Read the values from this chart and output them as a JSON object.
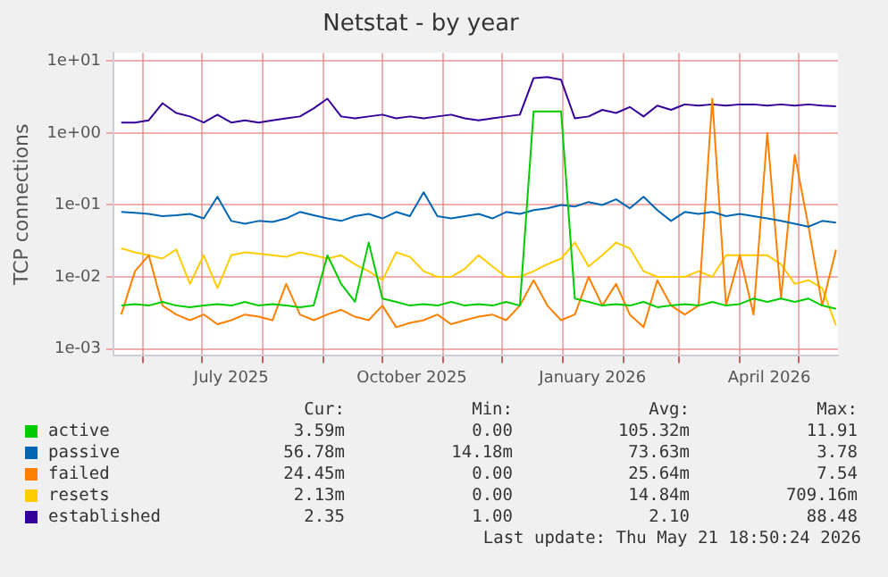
{
  "chart_data": {
    "type": "line",
    "title": "Netstat - by year",
    "ylabel": "TCP connections",
    "log": "y",
    "grid": true,
    "legend": "bottom",
    "marker": "none",
    "line_style": "solid",
    "x": [
      "2025-05-21",
      "2025-05-28",
      "2025-06-04",
      "2025-06-11",
      "2025-06-18",
      "2025-06-25",
      "2025-07-02",
      "2025-07-09",
      "2025-07-16",
      "2025-07-23",
      "2025-07-30",
      "2025-08-06",
      "2025-08-13",
      "2025-08-20",
      "2025-08-27",
      "2025-09-03",
      "2025-09-10",
      "2025-09-17",
      "2025-09-24",
      "2025-10-01",
      "2025-10-08",
      "2025-10-15",
      "2025-10-22",
      "2025-10-29",
      "2025-11-05",
      "2025-11-12",
      "2025-11-19",
      "2025-11-26",
      "2025-12-03",
      "2025-12-10",
      "2025-12-17",
      "2025-12-24",
      "2025-12-31",
      "2026-01-07",
      "2026-01-14",
      "2026-01-21",
      "2026-01-28",
      "2026-02-04",
      "2026-02-11",
      "2026-02-18",
      "2026-02-25",
      "2026-03-04",
      "2026-03-11",
      "2026-03-18",
      "2026-03-25",
      "2026-04-01",
      "2026-04-08",
      "2026-04-15",
      "2026-04-22",
      "2026-04-29",
      "2026-05-06",
      "2026-05-13",
      "2026-05-20"
    ],
    "xlim": [
      "2025-05-17",
      "2026-05-21"
    ],
    "xticks": [
      {
        "value": "2025-06-01",
        "label": null
      },
      {
        "value": "2025-07-01",
        "label": null
      },
      {
        "value": "2025-07-16",
        "label": "July 2025"
      },
      {
        "value": "2025-08-01",
        "label": null
      },
      {
        "value": "2025-09-01",
        "label": null
      },
      {
        "value": "2025-10-01",
        "label": null
      },
      {
        "value": "2025-10-16",
        "label": "October 2025"
      },
      {
        "value": "2025-11-01",
        "label": null
      },
      {
        "value": "2025-12-01",
        "label": null
      },
      {
        "value": "2026-01-01",
        "label": null
      },
      {
        "value": "2026-01-16",
        "label": "January 2026"
      },
      {
        "value": "2026-02-01",
        "label": null
      },
      {
        "value": "2026-03-01",
        "label": null
      },
      {
        "value": "2026-04-01",
        "label": null
      },
      {
        "value": "2026-04-16",
        "label": "April 2026"
      },
      {
        "value": "2026-05-01",
        "label": null
      }
    ],
    "ylim": [
      0.0008,
      13
    ],
    "yticks": [
      {
        "value": 0.001,
        "label": "1e-03"
      },
      {
        "value": 0.01,
        "label": "1e-02"
      },
      {
        "value": 0.1,
        "label": "1e-01"
      },
      {
        "value": 1,
        "label": "1e+00"
      },
      {
        "value": 10,
        "label": "1e+01"
      }
    ],
    "series": [
      {
        "name": "active",
        "color": "#00cc00",
        "values": [
          0.004,
          0.0042,
          0.004,
          0.0045,
          0.004,
          0.0038,
          0.004,
          0.0042,
          0.004,
          0.0045,
          0.004,
          0.0042,
          0.004,
          0.0038,
          0.004,
          0.02,
          0.008,
          0.0045,
          0.03,
          0.005,
          0.0045,
          0.004,
          0.0042,
          0.004,
          0.0045,
          0.004,
          0.0042,
          0.004,
          0.0045,
          0.004,
          2.0,
          2.0,
          2.0,
          0.005,
          0.0045,
          0.004,
          0.0042,
          0.004,
          0.0045,
          0.0038,
          0.004,
          0.0042,
          0.004,
          0.0045,
          0.004,
          0.0042,
          0.005,
          0.0045,
          0.005,
          0.0045,
          0.005,
          0.004,
          0.0036
        ]
      },
      {
        "name": "passive",
        "color": "#0066b3",
        "values": [
          0.08,
          0.078,
          0.075,
          0.07,
          0.072,
          0.075,
          0.065,
          0.13,
          0.06,
          0.055,
          0.06,
          0.058,
          0.065,
          0.08,
          0.072,
          0.065,
          0.06,
          0.07,
          0.075,
          0.065,
          0.08,
          0.07,
          0.15,
          0.07,
          0.065,
          0.07,
          0.075,
          0.065,
          0.08,
          0.075,
          0.085,
          0.09,
          0.1,
          0.095,
          0.11,
          0.1,
          0.12,
          0.09,
          0.13,
          0.085,
          0.06,
          0.08,
          0.075,
          0.08,
          0.07,
          0.075,
          0.07,
          0.065,
          0.06,
          0.055,
          0.05,
          0.06,
          0.057
        ]
      },
      {
        "name": "failed",
        "color": "#ff8000",
        "values": [
          0.003,
          0.012,
          0.02,
          0.004,
          0.003,
          0.0025,
          0.003,
          0.0022,
          0.0025,
          0.003,
          0.0028,
          0.0025,
          0.008,
          0.003,
          0.0025,
          0.003,
          0.0035,
          0.0028,
          0.0025,
          0.004,
          0.002,
          0.0023,
          0.0025,
          0.003,
          0.0022,
          0.0025,
          0.0028,
          0.003,
          0.0025,
          0.004,
          0.009,
          0.004,
          0.0025,
          0.003,
          0.01,
          0.004,
          0.008,
          0.003,
          0.002,
          0.009,
          0.004,
          0.003,
          0.004,
          3.0,
          0.004,
          0.02,
          0.003,
          1.0,
          0.005,
          0.5,
          0.05,
          0.004,
          0.024
        ]
      },
      {
        "name": "resets",
        "color": "#ffcc00",
        "values": [
          0.025,
          0.022,
          0.02,
          0.018,
          0.024,
          0.008,
          0.02,
          0.007,
          0.02,
          0.022,
          0.021,
          0.02,
          0.019,
          0.022,
          0.02,
          0.018,
          0.02,
          0.015,
          0.012,
          0.009,
          0.022,
          0.019,
          0.012,
          0.01,
          0.01,
          0.013,
          0.02,
          0.014,
          0.01,
          0.01,
          0.012,
          0.015,
          0.018,
          0.03,
          0.014,
          0.02,
          0.03,
          0.025,
          0.012,
          0.01,
          0.01,
          0.01,
          0.012,
          0.01,
          0.02,
          0.02,
          0.02,
          0.02,
          0.015,
          0.008,
          0.009,
          0.007,
          0.0021
        ]
      },
      {
        "name": "established",
        "color": "#330099",
        "values": [
          1.4,
          1.4,
          1.5,
          2.6,
          1.9,
          1.7,
          1.4,
          1.8,
          1.4,
          1.5,
          1.4,
          1.5,
          1.6,
          1.7,
          2.2,
          3.0,
          1.7,
          1.6,
          1.7,
          1.8,
          1.6,
          1.7,
          1.6,
          1.7,
          1.8,
          1.6,
          1.5,
          1.6,
          1.7,
          1.8,
          5.8,
          6.0,
          5.5,
          1.6,
          1.7,
          2.1,
          1.9,
          2.3,
          1.7,
          2.4,
          2.1,
          2.5,
          2.4,
          2.5,
          2.4,
          2.5,
          2.5,
          2.4,
          2.5,
          2.4,
          2.5,
          2.4,
          2.35
        ]
      }
    ],
    "annotations": [
      "Cur:",
      "Min:",
      "Avg:",
      "Max:",
      "3.59m",
      "0.00",
      "105.32m",
      "11.91",
      "56.78m",
      "14.18m",
      "73.63m",
      "3.78",
      "24.45m",
      "0.00",
      "25.64m",
      "7.54",
      "2.13m",
      "0.00",
      "14.84m",
      "709.16m",
      "2.35",
      "1.00",
      "2.10",
      "88.48",
      "Last update: Thu May 21 18:50:24 2026"
    ]
  }
}
